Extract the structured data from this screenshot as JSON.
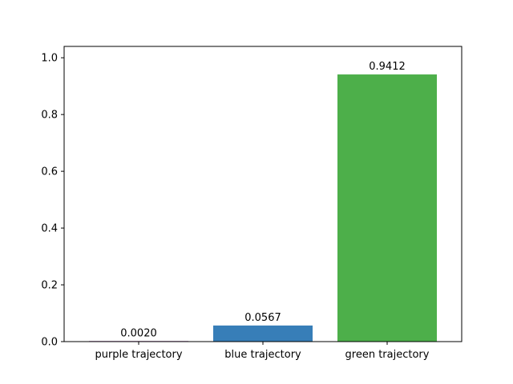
{
  "chart_data": {
    "type": "bar",
    "categories": [
      "purple trajectory",
      "blue trajectory",
      "green trajectory"
    ],
    "values": [
      0.002,
      0.0567,
      0.9412
    ],
    "value_labels": [
      "0.0020",
      "0.0567",
      "0.9412"
    ],
    "colors": [
      "#984ea3",
      "#377eb8",
      "#4daf4a"
    ],
    "title": "",
    "xlabel": "",
    "ylabel": "",
    "ylim": [
      0,
      1.04
    ],
    "yticks": [
      0.0,
      0.2,
      0.4,
      0.6,
      0.8,
      1.0
    ],
    "ytick_labels": [
      "0.0",
      "0.2",
      "0.4",
      "0.6",
      "0.8",
      "1.0"
    ],
    "grid": false,
    "legend": false
  }
}
